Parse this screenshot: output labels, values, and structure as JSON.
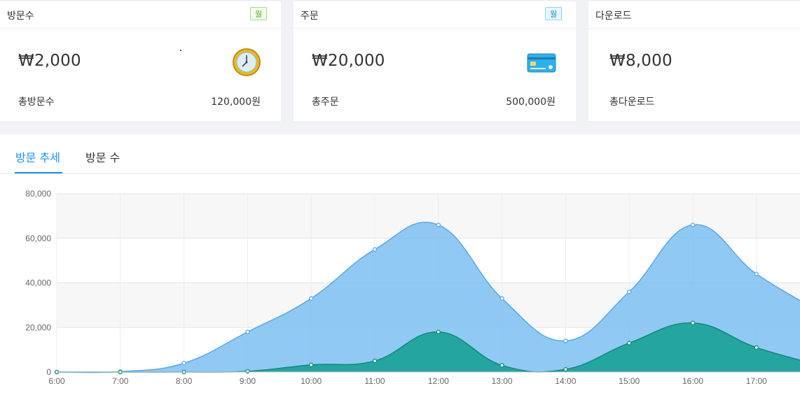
{
  "cards": [
    {
      "title": "방문수",
      "badge": "월",
      "badge_color": "green",
      "value": "₩2,000",
      "foot_label": "총방문수",
      "foot_value": "120,000원",
      "icon": "clock-icon"
    },
    {
      "title": "주문",
      "badge": "월",
      "badge_color": "blue",
      "value": "₩20,000",
      "foot_label": "총주문",
      "foot_value": "500,000원",
      "icon": "credit-card-icon"
    },
    {
      "title": "다운로드",
      "badge": "",
      "value": "₩8,000",
      "foot_label": "총다운로드",
      "foot_value": "",
      "icon": ""
    }
  ],
  "tabs": [
    {
      "label": "방문 추세",
      "active": true
    },
    {
      "label": "방문 수",
      "active": false
    }
  ],
  "colors": {
    "accent": "#1890ff",
    "series_light": "#7dbff2",
    "series_light_stroke": "#5aa8e8",
    "series_dark": "#1fa39a",
    "series_dark_stroke": "#0f8a78"
  },
  "chart_data": {
    "type": "area",
    "x": [
      "6:00",
      "7:00",
      "8:00",
      "9:00",
      "10:00",
      "11:00",
      "12:00",
      "13:00",
      "14:00",
      "15:00",
      "16:00",
      "17:00"
    ],
    "series": [
      {
        "values": [
          0,
          200,
          4000,
          18000,
          33000,
          55000,
          66000,
          33000,
          14000,
          36000,
          66000,
          44000
        ]
      },
      {
        "values": [
          0,
          0,
          0,
          300,
          3200,
          5000,
          18000,
          3000,
          1200,
          13000,
          22000,
          11000
        ]
      }
    ],
    "ylim": [
      0,
      80000
    ],
    "yticks": [
      "0",
      "20,000",
      "40,000",
      "60,000",
      "80,000"
    ],
    "grid": true
  }
}
